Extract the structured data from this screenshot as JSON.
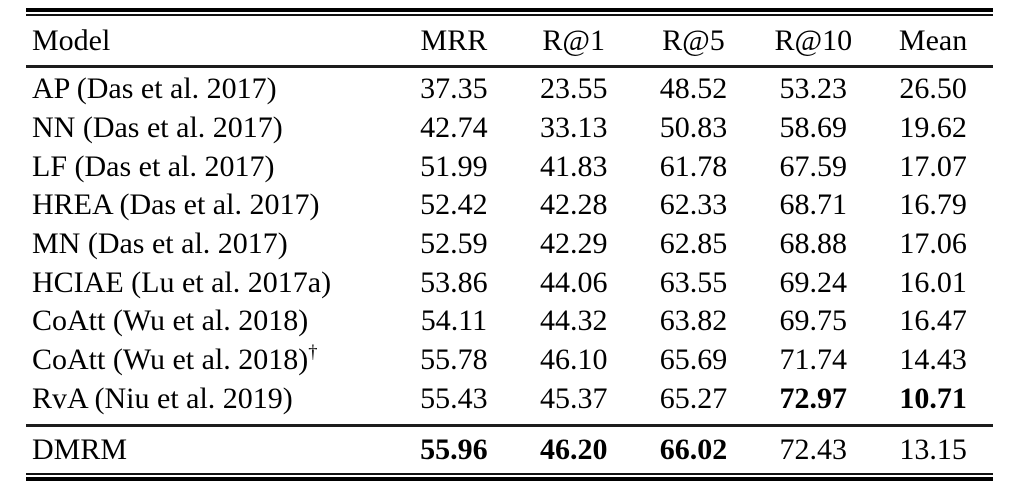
{
  "table": {
    "columns": [
      "Model",
      "MRR",
      "R@1",
      "R@5",
      "R@10",
      "Mean"
    ],
    "rows": [
      {
        "model": "AP (Das et al. 2017)",
        "values": [
          "37.35",
          "23.55",
          "48.52",
          "53.23",
          "26.50"
        ],
        "bold": [
          false,
          false,
          false,
          false,
          false
        ]
      },
      {
        "model": "NN (Das et al. 2017)",
        "values": [
          "42.74",
          "33.13",
          "50.83",
          "58.69",
          "19.62"
        ],
        "bold": [
          false,
          false,
          false,
          false,
          false
        ]
      },
      {
        "model": "LF (Das et al. 2017)",
        "values": [
          "51.99",
          "41.83",
          "61.78",
          "67.59",
          "17.07"
        ],
        "bold": [
          false,
          false,
          false,
          false,
          false
        ]
      },
      {
        "model": "HREA (Das et al. 2017)",
        "values": [
          "52.42",
          "42.28",
          "62.33",
          "68.71",
          "16.79"
        ],
        "bold": [
          false,
          false,
          false,
          false,
          false
        ]
      },
      {
        "model": "MN (Das et al. 2017)",
        "values": [
          "52.59",
          "42.29",
          "62.85",
          "68.88",
          "17.06"
        ],
        "bold": [
          false,
          false,
          false,
          false,
          false
        ]
      },
      {
        "model": "HCIAE (Lu et al. 2017a)",
        "values": [
          "53.86",
          "44.06",
          "63.55",
          "69.24",
          "16.01"
        ],
        "bold": [
          false,
          false,
          false,
          false,
          false
        ]
      },
      {
        "model": "CoAtt (Wu et al. 2018)",
        "values": [
          "54.11",
          "44.32",
          "63.82",
          "69.75",
          "16.47"
        ],
        "bold": [
          false,
          false,
          false,
          false,
          false
        ]
      },
      {
        "model": "CoAtt (Wu et al. 2018)",
        "sup": "†",
        "values": [
          "55.78",
          "46.10",
          "65.69",
          "71.74",
          "14.43"
        ],
        "bold": [
          false,
          false,
          false,
          false,
          false
        ]
      },
      {
        "model": "RvA (Niu et al. 2019)",
        "values": [
          "55.43",
          "45.37",
          "65.27",
          "72.97",
          "10.71"
        ],
        "bold": [
          false,
          false,
          false,
          true,
          true
        ]
      }
    ],
    "dmrm_row": {
      "model": "DMRM",
      "values": [
        "55.96",
        "46.20",
        "66.02",
        "72.43",
        "13.15"
      ],
      "bold": [
        true,
        true,
        true,
        false,
        false
      ]
    }
  }
}
